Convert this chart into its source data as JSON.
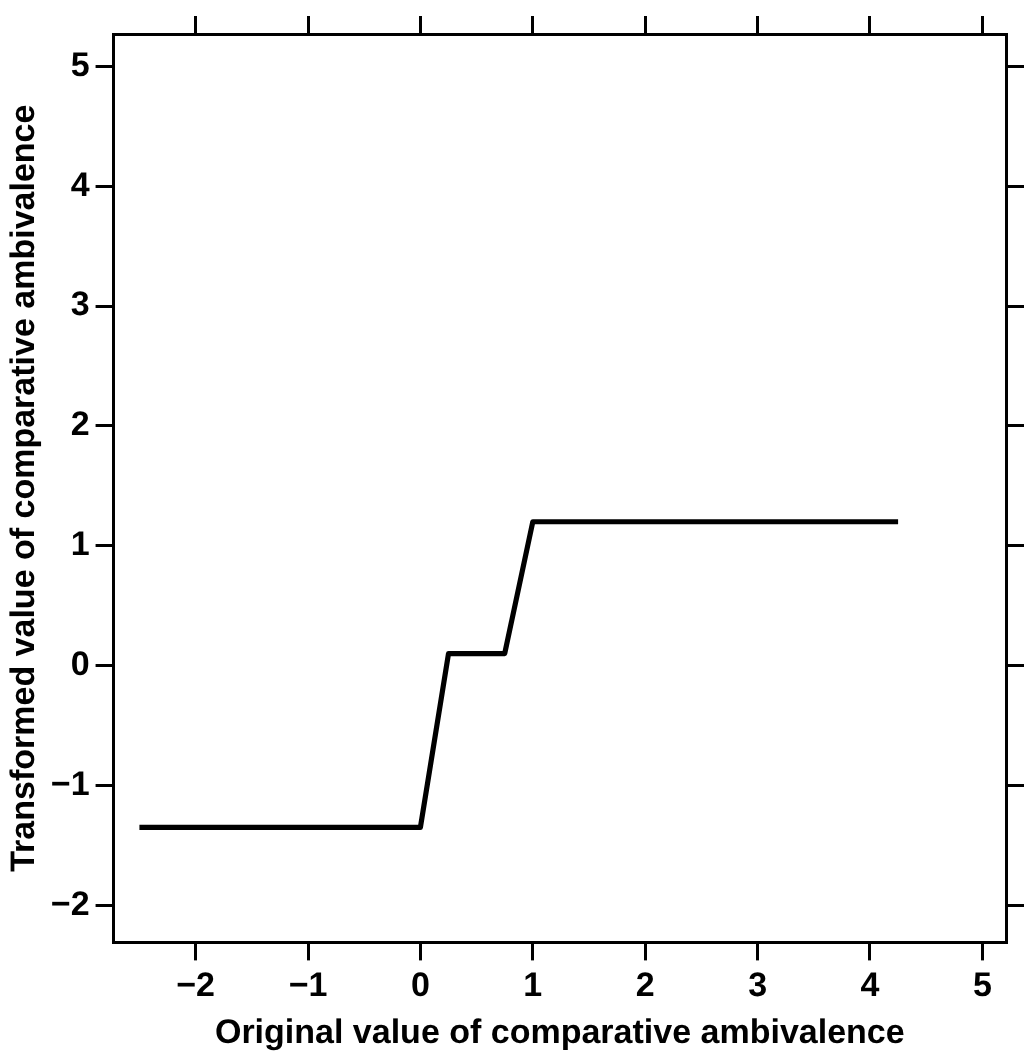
{
  "chart_data": {
    "type": "line",
    "xlabel": "Original value of comparative ambivalence",
    "ylabel": "Transformed value of comparative ambivalence",
    "x": [
      -2.5,
      0,
      0.25,
      0.75,
      1,
      4.25
    ],
    "series": [
      {
        "color": "#000000",
        "values": [
          -1.35,
          -1.35,
          0.1,
          0.1,
          1.2,
          1.2
        ]
      }
    ],
    "xlim": [
      -2.73,
      5.21
    ],
    "xticks": [
      -2,
      -1,
      0,
      1,
      2,
      3,
      4,
      5
    ],
    "ylim": [
      -2.31,
      5.27
    ],
    "yticks": [
      -2,
      -1,
      0,
      1,
      2,
      3,
      4,
      5
    ],
    "grid": false,
    "legend": false,
    "marker": "none",
    "line_style": "solid"
  }
}
